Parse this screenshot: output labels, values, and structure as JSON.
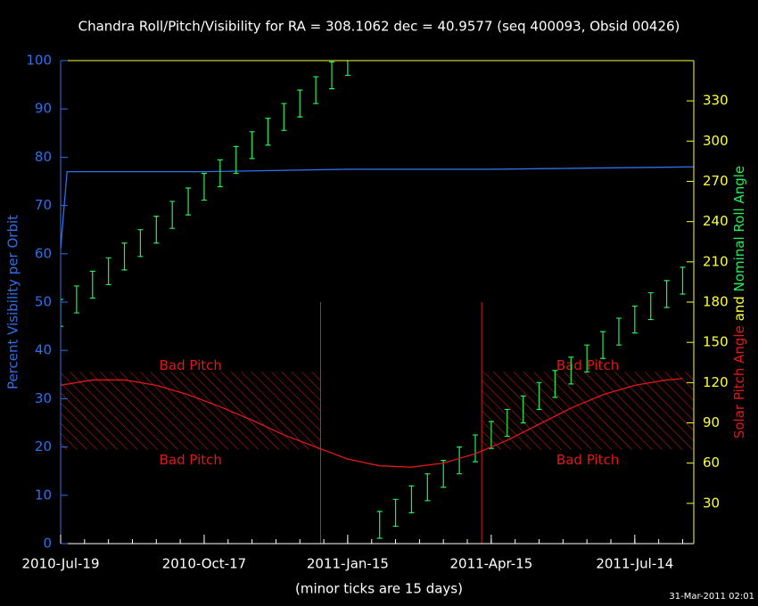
{
  "chart_data": {
    "type": "line",
    "title": "Chandra Roll/Pitch/Visibility for RA = 308.1062 dec = 40.9577 (seq 400093, Obsid 00426)",
    "ylabel": "Percent Visibility per Orbit",
    "y2label": [
      "Solar Pitch Angle",
      "and",
      "Nominal Roll Angle"
    ],
    "xlabel": "(minor ticks are 15 days)",
    "timestamp": "31-Mar-2011 02:01",
    "xlim": [
      "2010-07-19",
      "2011-08-20"
    ],
    "xticks": [
      {
        "value": "2010-07-19",
        "label": "2010-Jul-19"
      },
      {
        "value": "2010-10-17",
        "label": "2010-Oct-17"
      },
      {
        "value": "2011-01-15",
        "label": "2011-Jan-15"
      },
      {
        "value": "2011-04-15",
        "label": "2011-Apr-15"
      },
      {
        "value": "2011-07-14",
        "label": "2011-Jul-14"
      }
    ],
    "xminor_days": 15,
    "ylim": [
      0,
      100
    ],
    "yticks": [
      0,
      10,
      20,
      30,
      40,
      50,
      60,
      70,
      80,
      90,
      100
    ],
    "y2lim": [
      0,
      360
    ],
    "y2ticks": [
      30,
      60,
      90,
      120,
      150,
      180,
      210,
      240,
      270,
      300,
      330
    ],
    "series": [
      {
        "kind": "line",
        "color": "#2f6fe8",
        "x": [
          "2010-07-19",
          "2010-07-23",
          "2010-10-17",
          "2011-01-15",
          "2011-04-15",
          "2011-08-20"
        ],
        "values": [
          61,
          77,
          77,
          77.5,
          77.5,
          78
        ]
      },
      {
        "kind": "errorbar",
        "axis": "y2",
        "color": "#22ee55",
        "error": 10,
        "x": [
          "2010-07-19",
          "2010-07-29",
          "2010-08-08",
          "2010-08-18",
          "2010-08-28",
          "2010-09-07",
          "2010-09-17",
          "2010-09-27",
          "2010-10-07",
          "2010-10-17",
          "2010-10-27",
          "2010-11-06",
          "2010-11-16",
          "2010-11-26",
          "2010-12-06",
          "2010-12-16",
          "2010-12-26",
          "2011-01-05",
          "2011-01-15",
          "2011-01-25",
          "2011-02-04",
          "2011-02-14",
          "2011-02-24",
          "2011-03-06",
          "2011-03-16",
          "2011-03-26",
          "2011-04-05",
          "2011-04-15",
          "2011-04-25",
          "2011-05-05",
          "2011-05-15",
          "2011-05-25",
          "2011-06-04",
          "2011-06-14",
          "2011-06-24",
          "2011-07-04",
          "2011-07-14",
          "2011-07-24",
          "2011-08-03",
          "2011-08-13"
        ],
        "values": [
          172,
          182,
          193,
          203,
          214,
          224,
          234,
          245,
          255,
          266,
          276,
          286,
          297,
          307,
          318,
          328,
          338,
          349,
          359,
          null,
          14,
          23,
          33,
          42,
          52,
          62,
          71,
          81,
          90,
          100,
          110,
          119,
          129,
          138,
          148,
          158,
          167,
          177,
          186,
          196
        ]
      },
      {
        "kind": "line",
        "axis": "y2",
        "color": "#e01818",
        "x": [
          "2010-07-19",
          "2010-08-08",
          "2010-08-28",
          "2010-09-17",
          "2010-10-07",
          "2010-10-27",
          "2010-11-16",
          "2010-12-06",
          "2010-12-26",
          "2011-01-15",
          "2011-02-04",
          "2011-02-24",
          "2011-03-16",
          "2011-04-05",
          "2011-04-25",
          "2011-05-15",
          "2011-06-04",
          "2011-06-24",
          "2011-07-14",
          "2011-08-03",
          "2011-08-13"
        ],
        "values": [
          118,
          122,
          122,
          118,
          111,
          102,
          92,
          81,
          72,
          63,
          58,
          57,
          60,
          67,
          77,
          89,
          101,
          111,
          118,
          122,
          123
        ]
      }
    ],
    "bad_pitch": {
      "label": "Bad Pitch",
      "color": "#e01818",
      "y2range": [
        70,
        128
      ],
      "spans": [
        [
          "2010-07-19",
          "2010-12-29"
        ],
        [
          "2011-04-09",
          "2011-08-20"
        ]
      ]
    },
    "markers": {
      "color": "#e01818",
      "x": [
        "2010-12-29",
        "2011-04-09"
      ],
      "y2top": 180
    }
  }
}
